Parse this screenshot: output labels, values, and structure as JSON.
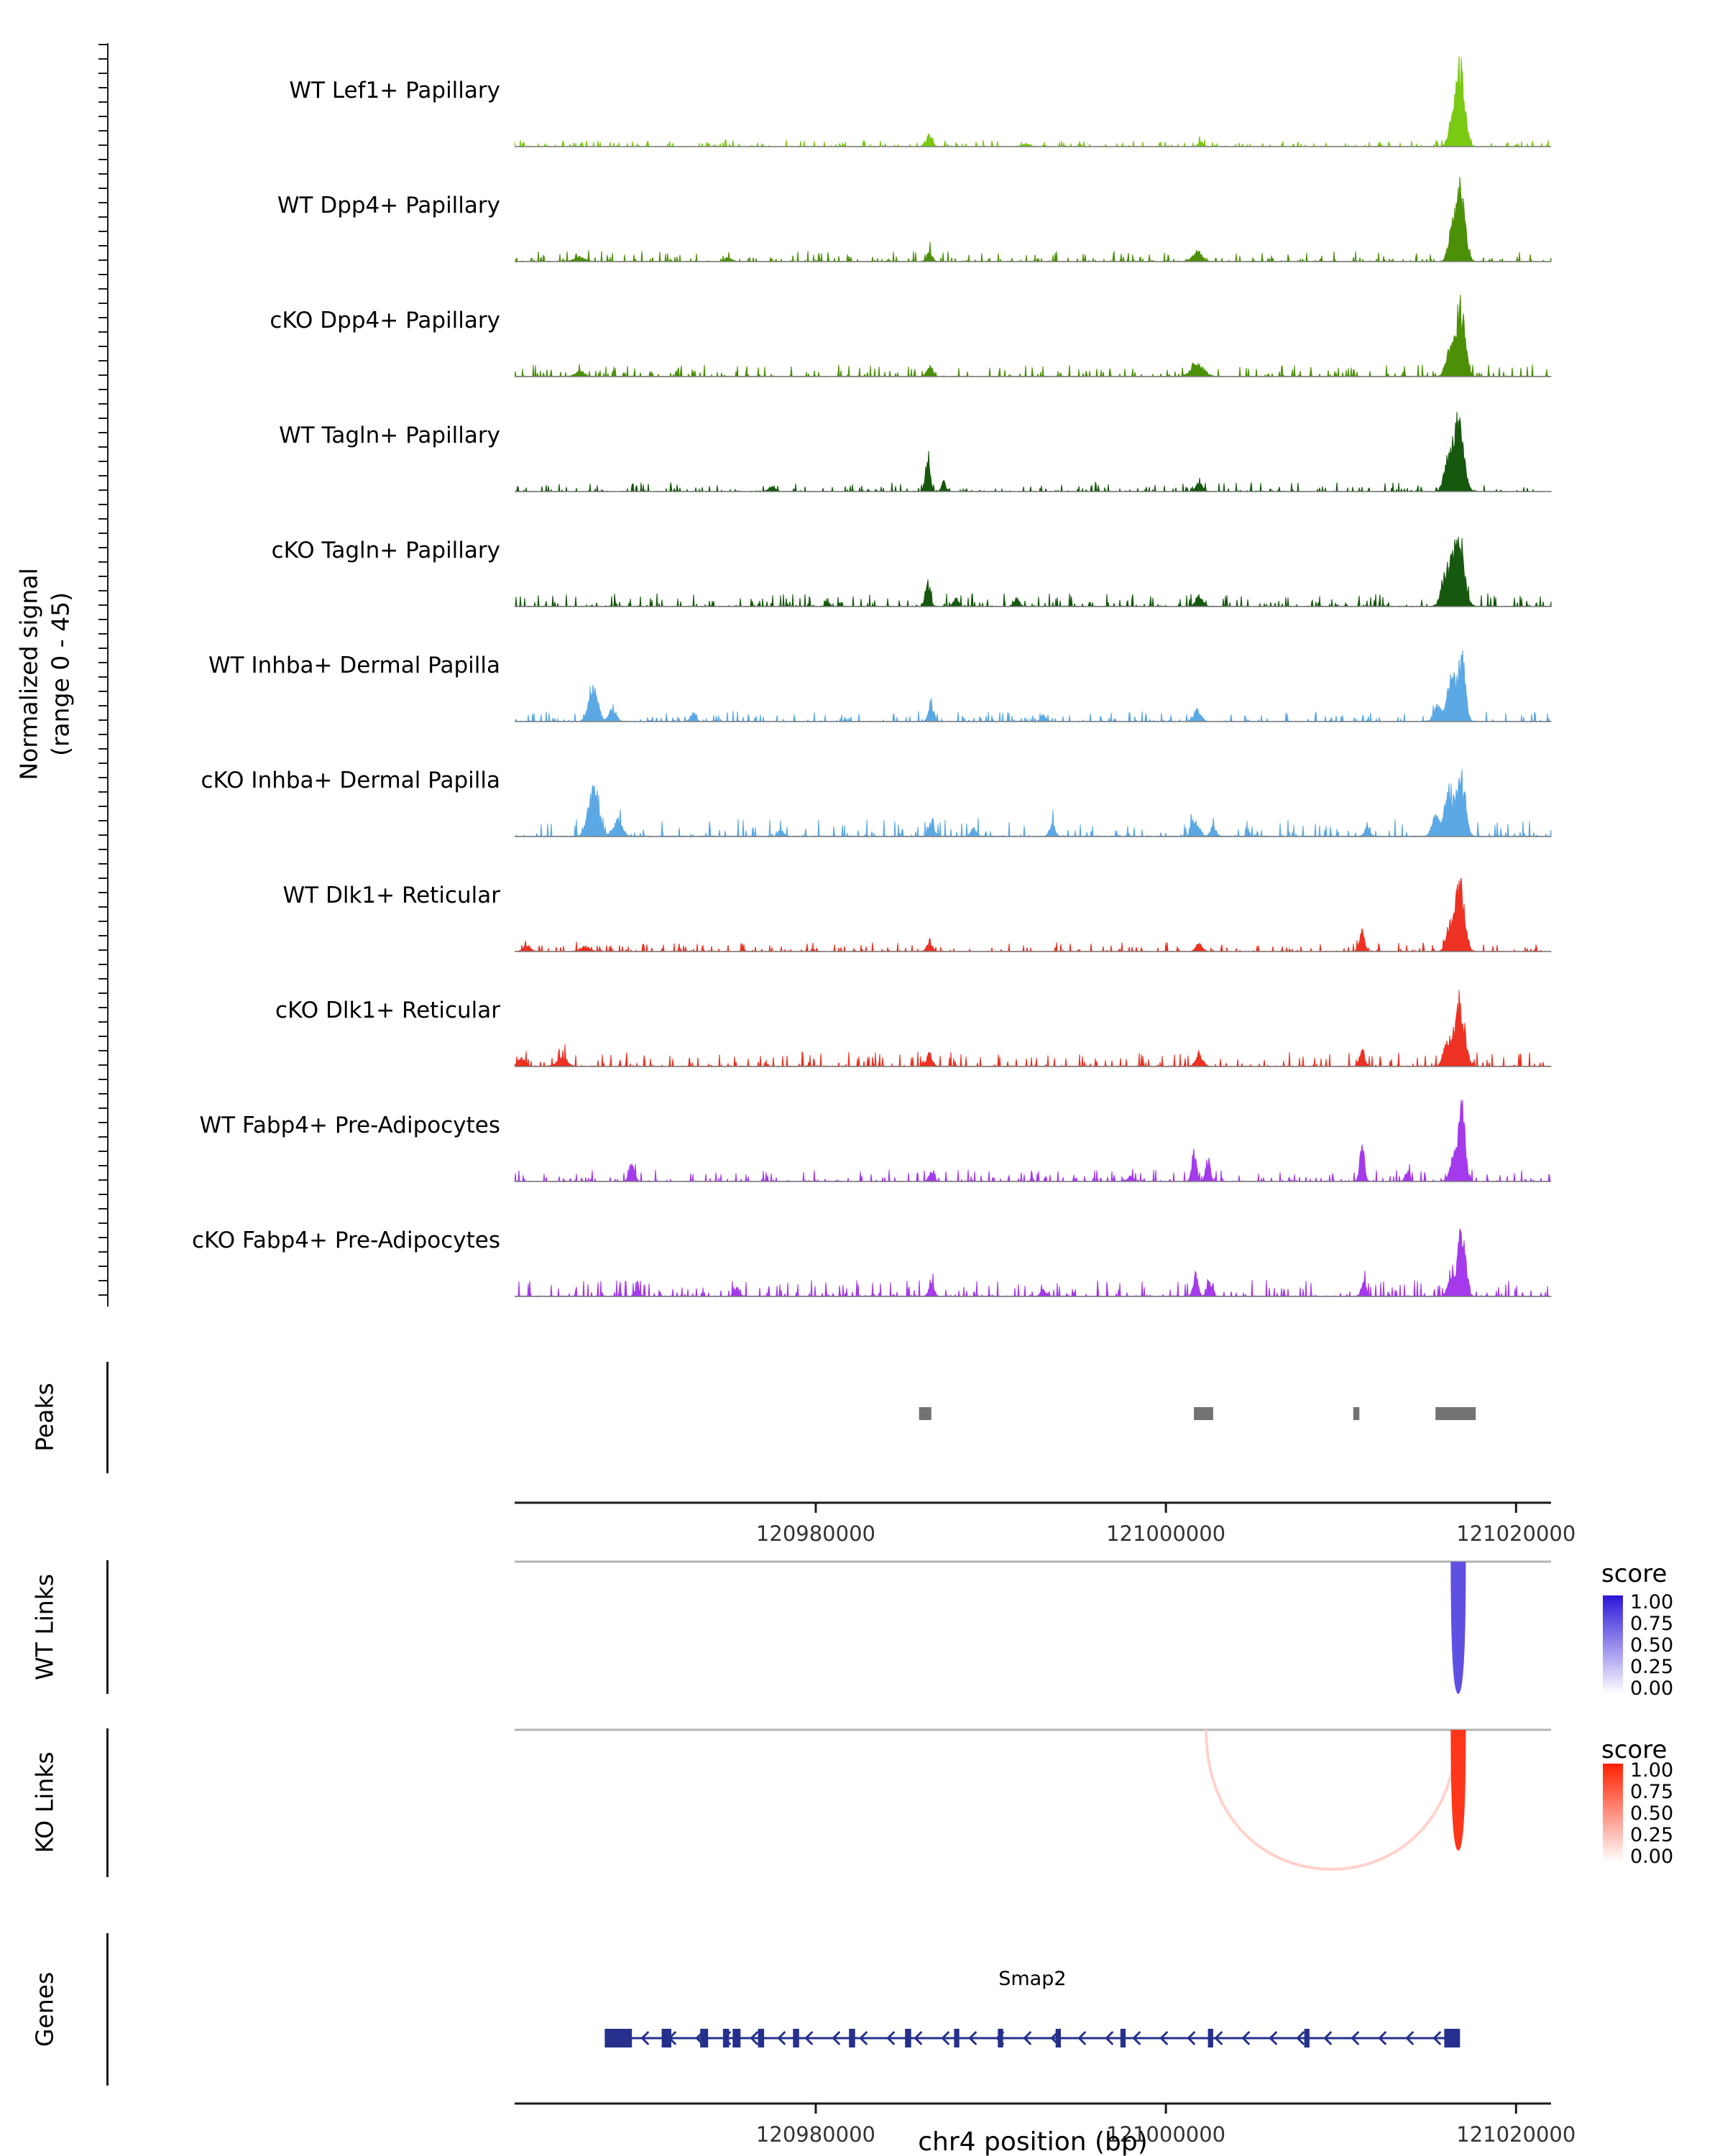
{
  "labels": {
    "peaks_section": "Peaks",
    "wt_links_section": "WT Links",
    "ko_links_section": "KO Links",
    "genes_section": "Genes"
  },
  "chart_data": {
    "type": "area",
    "subtype": "genomic-coverage-browser",
    "region": {
      "chrom": "chr4",
      "start": 120962800,
      "end": 121022000
    },
    "x_axis": {
      "label": "chr4 position (bp)",
      "ticks": [
        {
          "bp": 120980000,
          "label": "120980000"
        },
        {
          "bp": 121000000,
          "label": "121000000"
        },
        {
          "bp": 121020000,
          "label": "121020000"
        }
      ]
    },
    "y_axis": {
      "label_line1": "Normalized signal",
      "label_line2": "(range 0 - 45)",
      "range": [
        0,
        45
      ]
    },
    "tracks": [
      {
        "name": "WT Lef1+ Papillary",
        "color": "#7AC912",
        "noise": 1.0,
        "peaks": [
          [
            121016800,
            45,
            250
          ],
          [
            121016300,
            11,
            200
          ],
          [
            120986500,
            7,
            150
          ],
          [
            121002000,
            2.5,
            150
          ],
          [
            120992000,
            1.5,
            200
          ]
        ]
      },
      {
        "name": "WT Dpp4+ Papillary",
        "color": "#4C9007",
        "noise": 1.6,
        "peaks": [
          [
            121016800,
            41,
            260
          ],
          [
            121016300,
            13,
            200
          ],
          [
            120986500,
            5.5,
            150
          ],
          [
            121001800,
            6,
            250
          ],
          [
            120966500,
            2.5,
            300
          ],
          [
            120975000,
            2,
            200
          ]
        ]
      },
      {
        "name": "cKO Dpp4+ Papillary",
        "color": "#4C9007",
        "noise": 1.8,
        "peaks": [
          [
            121016800,
            40,
            260
          ],
          [
            121016200,
            12.5,
            220
          ],
          [
            120986500,
            6,
            160
          ],
          [
            121001800,
            7.5,
            350
          ],
          [
            120966500,
            2.5,
            250
          ]
        ]
      },
      {
        "name": "WT Tagln+ Papillary",
        "color": "#16590E",
        "noise": 1.4,
        "peaks": [
          [
            121016700,
            40,
            280
          ],
          [
            121016100,
            16,
            220
          ],
          [
            120986400,
            17,
            140
          ],
          [
            120987300,
            5.5,
            120
          ],
          [
            121001900,
            5.5,
            180
          ],
          [
            120977500,
            2.5,
            200
          ]
        ]
      },
      {
        "name": "cKO Tagln+ Papillary",
        "color": "#16590E",
        "noise": 2.0,
        "peaks": [
          [
            121016700,
            43,
            300
          ],
          [
            121016000,
            18,
            250
          ],
          [
            120986400,
            14.5,
            140
          ],
          [
            120988000,
            4.5,
            150
          ],
          [
            121001900,
            5.5,
            200
          ],
          [
            120991500,
            4.5,
            150
          ]
        ]
      },
      {
        "name": "WT Inhba+ Dermal Papilla",
        "color": "#5BA8E5",
        "noise": 1.6,
        "peaks": [
          [
            121016900,
            36,
            200
          ],
          [
            121016300,
            25,
            250
          ],
          [
            121015500,
            9,
            200
          ],
          [
            120967300,
            19,
            250
          ],
          [
            120968400,
            7,
            200
          ],
          [
            120986600,
            9,
            150
          ],
          [
            121001800,
            6.5,
            200
          ],
          [
            120993000,
            3.5,
            150
          ],
          [
            120973000,
            4.5,
            150
          ]
        ]
      },
      {
        "name": "cKO Inhba+ Dermal Papilla",
        "color": "#5BA8E5",
        "noise": 2.7,
        "peaks": [
          [
            121016900,
            34,
            220
          ],
          [
            121016200,
            27,
            260
          ],
          [
            121015400,
            11,
            200
          ],
          [
            120967300,
            25,
            300
          ],
          [
            120968700,
            9,
            250
          ],
          [
            120986600,
            9,
            150
          ],
          [
            121001700,
            9,
            200
          ],
          [
            121002700,
            5.5,
            150
          ],
          [
            120993500,
            7,
            150
          ],
          [
            120989000,
            4.5,
            150
          ],
          [
            120978000,
            3.5,
            150
          ],
          [
            121011500,
            4.5,
            150
          ]
        ]
      },
      {
        "name": "WT Dlk1+ Reticular",
        "color": "#ED3123",
        "noise": 1.4,
        "peaks": [
          [
            121016800,
            40,
            250
          ],
          [
            121016200,
            13.5,
            200
          ],
          [
            120986500,
            6,
            150
          ],
          [
            121001900,
            4.5,
            180
          ],
          [
            121011200,
            11,
            150
          ],
          [
            120966800,
            3,
            250
          ],
          [
            120963500,
            3.5,
            200
          ]
        ]
      },
      {
        "name": "cKO Dlk1+ Reticular",
        "color": "#ED3123",
        "noise": 2.2,
        "peaks": [
          [
            121016800,
            38,
            260
          ],
          [
            121016100,
            14.5,
            220
          ],
          [
            120986500,
            7,
            150
          ],
          [
            121001900,
            6,
            200
          ],
          [
            121011200,
            9,
            150
          ],
          [
            120965500,
            4.5,
            300
          ],
          [
            120963200,
            4.5,
            200
          ]
        ]
      },
      {
        "name": "WT Fabp4+ Pre-Adipocytes",
        "color": "#A43AEC",
        "noise": 1.8,
        "peaks": [
          [
            121016900,
            45,
            180
          ],
          [
            121016400,
            13.5,
            200
          ],
          [
            121001600,
            16,
            130
          ],
          [
            121002400,
            12.5,
            130
          ],
          [
            121011200,
            19,
            130
          ],
          [
            120969500,
            11,
            150
          ],
          [
            120986600,
            4.5,
            150
          ],
          [
            120998000,
            3.5,
            150
          ],
          [
            121013800,
            5.5,
            130
          ]
        ]
      },
      {
        "name": "cKO Fabp4+ Pre-Adipocytes",
        "color": "#A43AEC",
        "noise": 2.5,
        "peaks": [
          [
            121016900,
            40,
            200
          ],
          [
            121016300,
            11,
            200
          ],
          [
            121001700,
            12.5,
            140
          ],
          [
            121002500,
            9,
            140
          ],
          [
            121011300,
            8,
            140
          ],
          [
            120986600,
            7,
            150
          ],
          [
            120975500,
            4.5,
            150
          ],
          [
            120969800,
            3.5,
            150
          ],
          [
            120993000,
            3.5,
            150
          ]
        ]
      }
    ],
    "peaks_track": {
      "label": "Peaks",
      "color": "#737373",
      "intervals": [
        [
          120985900,
          120986600
        ],
        [
          121001600,
          121002700
        ],
        [
          121010700,
          121011050
        ],
        [
          121015400,
          121017700
        ]
      ]
    },
    "wt_links": {
      "label": "WT Links",
      "legend_title": "score",
      "legend_ticks": [
        "1.00",
        "0.75",
        "0.50",
        "0.25",
        "0.00"
      ],
      "high_color": "#2B16D8",
      "links": [
        {
          "start": 121016350,
          "end": 121017050,
          "score": 0.75
        }
      ]
    },
    "ko_links": {
      "label": "KO Links",
      "legend_title": "score",
      "legend_ticks": [
        "1.00",
        "0.75",
        "0.50",
        "0.25",
        "0.00"
      ],
      "high_color": "#FF2000",
      "links": [
        {
          "start": 121002300,
          "end": 121016600,
          "score": 0.2
        },
        {
          "start": 121016350,
          "end": 121017050,
          "score": 0.9
        }
      ]
    },
    "genes_track": {
      "label": "Genes",
      "genes": [
        {
          "name": "Smap2",
          "start": 120967950,
          "end": 121016800,
          "strand": "-",
          "color": "#25308C",
          "exons": [
            [
              120967950,
              120969500
            ],
            [
              120971200,
              120971750
            ],
            [
              120973400,
              120973850
            ],
            [
              120974700,
              120975050
            ],
            [
              120975250,
              120975700
            ],
            [
              120976700,
              120977050
            ],
            [
              120978700,
              120979050
            ],
            [
              120981900,
              120982250
            ],
            [
              120985100,
              120985450
            ],
            [
              120987900,
              120988200
            ],
            [
              120990400,
              120990700
            ],
            [
              120993700,
              120994000
            ],
            [
              120997400,
              120997700
            ],
            [
              121002400,
              121002700
            ],
            [
              121007900,
              121008200
            ],
            [
              121015900,
              121016800
            ]
          ]
        }
      ]
    }
  }
}
